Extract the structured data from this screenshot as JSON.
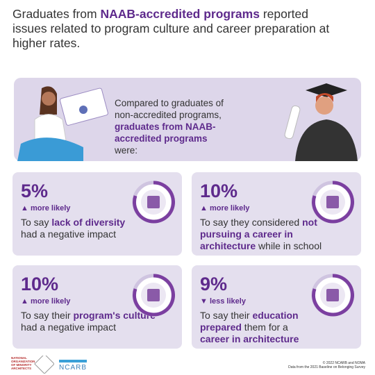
{
  "title": {
    "parts": [
      {
        "text": "Graduates from "
      },
      {
        "text": "NAAB-accredited programs",
        "bold": true
      },
      {
        "text": " reported issues related to program culture and career preparation at higher rates."
      }
    ]
  },
  "intro": {
    "parts": [
      {
        "text": "Compared to graduates of non-accredited programs, "
      },
      {
        "text": "graduates from NAAB-accredited programs",
        "bold": true
      },
      {
        "text": " were:"
      }
    ]
  },
  "cards": [
    {
      "stat": "5%",
      "direction": "▲ more likely",
      "parts": [
        {
          "text": "To say "
        },
        {
          "text": "lack of diversity",
          "bold": true
        },
        {
          "text": " had a negative impact"
        }
      ]
    },
    {
      "stat": "10%",
      "direction": "▲ more likely",
      "parts": [
        {
          "text": "To say they considered "
        },
        {
          "text": "not pursuing a career in architecture",
          "bold": true
        },
        {
          "text": " while in school"
        }
      ]
    },
    {
      "stat": "10%",
      "direction": "▲ more likely",
      "parts": [
        {
          "text": "To say their "
        },
        {
          "text": "program's culture",
          "bold": true
        },
        {
          "text": " had a negative impact"
        }
      ]
    },
    {
      "stat": "9%",
      "direction": "▼ less likely",
      "parts": [
        {
          "text": "To say their "
        },
        {
          "text": "education prepared",
          "bold": true
        },
        {
          "text": " them for a "
        },
        {
          "text": "career in architecture",
          "bold": true
        }
      ]
    }
  ],
  "footer": {
    "noma": [
      "NATIONAL",
      "ORGANIZATION",
      "OF MINORITY",
      "ARCHITECTS"
    ],
    "ncarb": "NCARB",
    "credits": [
      "© 2022 NCARB and NOMA",
      "Data from the 2021 Baseline on Belonging Survey"
    ]
  }
}
